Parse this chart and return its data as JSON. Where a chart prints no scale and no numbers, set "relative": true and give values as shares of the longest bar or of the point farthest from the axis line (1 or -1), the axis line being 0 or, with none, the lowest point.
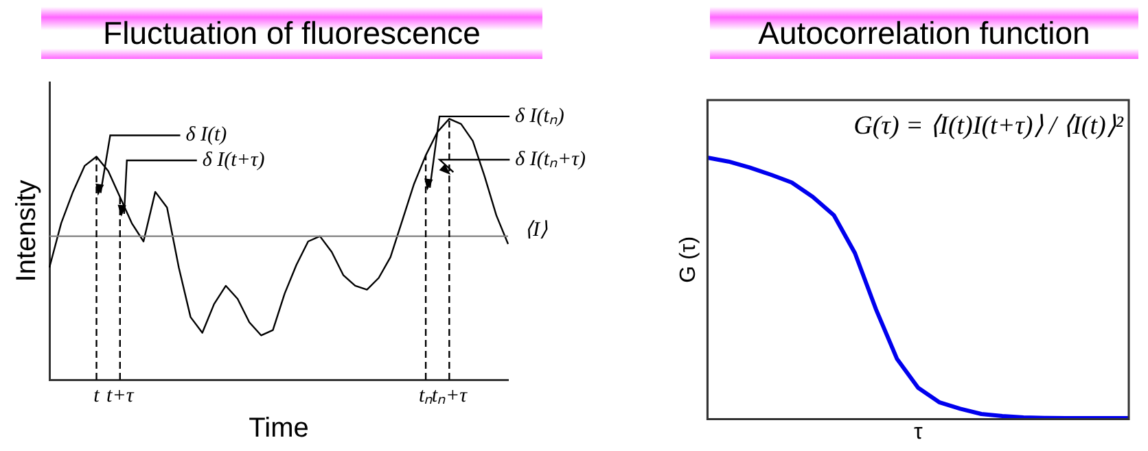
{
  "chart_data": [
    {
      "type": "line",
      "title": "Fluctuation of fluorescence",
      "xlabel": "Time",
      "ylabel": "Intensity",
      "relative": true,
      "tick_labels": "x",
      "categories": [
        null,
        null,
        null,
        null,
        "t",
        null,
        "t+τ",
        null,
        null,
        null,
        null,
        null,
        null,
        null,
        null,
        null,
        null,
        null,
        null,
        null,
        null,
        null,
        null,
        null,
        null,
        null,
        null,
        null,
        null,
        null,
        null,
        null,
        "tₙ",
        null,
        "tₙ+τ",
        null,
        null,
        null,
        null,
        null
      ],
      "series": [
        {
          "color": "#000000",
          "values": [
            0.43,
            0.6,
            0.72,
            0.82,
            0.855,
            0.8,
            0.7,
            0.6,
            0.53,
            0.72,
            0.66,
            0.43,
            0.24,
            0.18,
            0.29,
            0.36,
            0.31,
            0.22,
            0.17,
            0.19,
            0.33,
            0.44,
            0.53,
            0.55,
            0.49,
            0.4,
            0.36,
            0.345,
            0.39,
            0.47,
            0.61,
            0.75,
            0.86,
            0.95,
            1,
            0.98,
            0.915,
            0.78,
            0.63,
            0.52
          ]
        }
      ],
      "ref_lines": [
        {
          "axis": "y",
          "value": 0.55,
          "label": "⟨I⟩",
          "color": "#808080"
        },
        {
          "axis": "x",
          "value": "t",
          "line_style": "dashed",
          "color": "#000000"
        },
        {
          "axis": "x",
          "value": "t+τ",
          "line_style": "dashed",
          "color": "#000000"
        },
        {
          "axis": "x",
          "value": "tₙ",
          "line_style": "dashed",
          "color": "#000000"
        },
        {
          "axis": "x",
          "value": "tₙ+τ",
          "line_style": "dashed",
          "color": "#000000"
        }
      ],
      "annotations": [
        {
          "text": "δ I(t)",
          "x": "t",
          "y": 0.7
        },
        {
          "text": "δ I(t+τ)",
          "x": "t+τ",
          "y": 0.62
        },
        {
          "text": "δ I(tₙ)",
          "x": "tₙ",
          "y": 0.72
        },
        {
          "text": "δ I(tₙ+τ)",
          "x": "tₙ+τ",
          "y": 0.78
        }
      ]
    },
    {
      "type": "line",
      "title": "Autocorrelation function",
      "xlabel": "τ",
      "ylabel": "G (τ)",
      "relative": true,
      "tick_labels": false,
      "categories": [
        null,
        null,
        null,
        null,
        null,
        null,
        null,
        null,
        null,
        null,
        null,
        null,
        null,
        null,
        null,
        null,
        null,
        null,
        null,
        null,
        null
      ],
      "series": [
        {
          "color": "#0000ee",
          "values": [
            1,
            0.985,
            0.962,
            0.935,
            0.905,
            0.85,
            0.78,
            0.635,
            0.42,
            0.23,
            0.12,
            0.065,
            0.04,
            0.02,
            0.012,
            0.007,
            0.005,
            0.004,
            0.004,
            0.004,
            0.004
          ]
        }
      ],
      "annotations": [
        "G(τ) = ⟨I(t)I(t+τ)⟩ / ⟨I(t)⟩²"
      ]
    }
  ]
}
